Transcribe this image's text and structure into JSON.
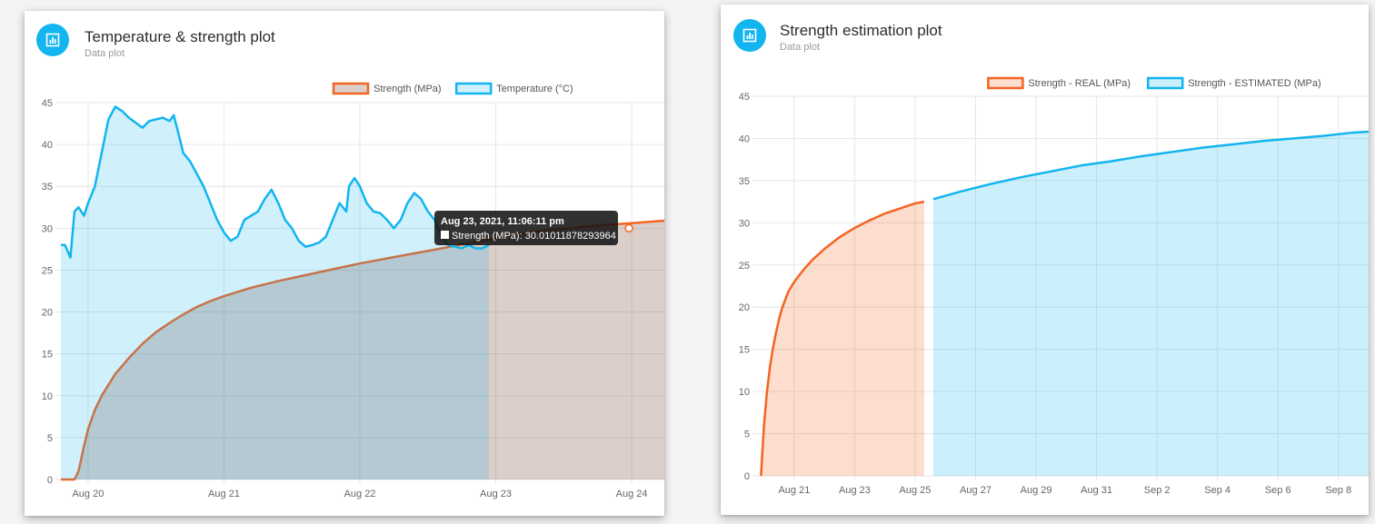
{
  "cards": [
    {
      "title": "Temperature & strength plot",
      "subtitle": "Data plot",
      "icon": "bar-chart-icon",
      "accent": "#12b5ef"
    },
    {
      "title": "Strength estimation plot",
      "subtitle": "Data plot",
      "icon": "bar-chart-icon",
      "accent": "#12b5ef"
    }
  ],
  "tooltip": {
    "title": "Aug 23, 2021, 11:06:11 pm",
    "body": "Strength (MPa): 30.01011878293964"
  },
  "chart_data": [
    {
      "type": "area",
      "legend_position": "top-right",
      "grid": true,
      "x_unit": "days",
      "x_tick_labels": [
        "Aug 20",
        "Aug 21",
        "Aug 22",
        "Aug 23",
        "Aug 24"
      ],
      "x_tick_values": [
        1,
        2,
        3,
        4,
        5
      ],
      "xlim": [
        0.8,
        5.24
      ],
      "ylim": [
        0,
        45
      ],
      "y_ticks": [
        0,
        5,
        10,
        15,
        20,
        25,
        30,
        35,
        40,
        45
      ],
      "series": [
        {
          "name": "Strength (MPa)",
          "color": "#f26522",
          "fill": "rgba(140,95,80,0.30)",
          "points": [
            [
              0.8,
              0
            ],
            [
              0.9,
              0
            ],
            [
              0.93,
              1
            ],
            [
              0.97,
              4
            ],
            [
              1.0,
              6
            ],
            [
              1.05,
              8.3
            ],
            [
              1.1,
              10
            ],
            [
              1.2,
              12.6
            ],
            [
              1.3,
              14.5
            ],
            [
              1.4,
              16.2
            ],
            [
              1.5,
              17.6
            ],
            [
              1.6,
              18.7
            ],
            [
              1.7,
              19.7
            ],
            [
              1.8,
              20.6
            ],
            [
              1.9,
              21.3
            ],
            [
              2.0,
              21.9
            ],
            [
              2.2,
              22.9
            ],
            [
              2.4,
              23.7
            ],
            [
              2.6,
              24.4
            ],
            [
              2.8,
              25.1
            ],
            [
              3.0,
              25.8
            ],
            [
              3.2,
              26.4
            ],
            [
              3.4,
              27
            ],
            [
              3.6,
              27.6
            ],
            [
              3.8,
              28.2
            ],
            [
              4.0,
              28.8
            ],
            [
              4.2,
              29.4
            ],
            [
              4.4,
              29.8
            ],
            [
              4.6,
              30.1
            ],
            [
              4.8,
              30.4
            ],
            [
              5.0,
              30.6
            ],
            [
              5.24,
              30.9
            ]
          ]
        },
        {
          "name": "Temperature (°C)",
          "color": "#12b5ef",
          "fill": "rgba(18,181,239,0.20)",
          "points": [
            [
              0.8,
              28
            ],
            [
              0.83,
              28
            ],
            [
              0.87,
              26.5
            ],
            [
              0.9,
              32
            ],
            [
              0.93,
              32.5
            ],
            [
              0.97,
              31.5
            ],
            [
              1.0,
              33
            ],
            [
              1.05,
              35
            ],
            [
              1.1,
              39
            ],
            [
              1.15,
              43
            ],
            [
              1.2,
              44.5
            ],
            [
              1.25,
              44
            ],
            [
              1.3,
              43.2
            ],
            [
              1.35,
              42.6
            ],
            [
              1.4,
              42
            ],
            [
              1.45,
              42.8
            ],
            [
              1.5,
              43
            ],
            [
              1.55,
              43.2
            ],
            [
              1.6,
              42.8
            ],
            [
              1.63,
              43.5
            ],
            [
              1.67,
              41
            ],
            [
              1.7,
              39
            ],
            [
              1.75,
              38
            ],
            [
              1.8,
              36.5
            ],
            [
              1.85,
              35
            ],
            [
              1.9,
              33
            ],
            [
              1.95,
              31
            ],
            [
              2.0,
              29.5
            ],
            [
              2.05,
              28.5
            ],
            [
              2.1,
              29
            ],
            [
              2.15,
              31
            ],
            [
              2.2,
              31.5
            ],
            [
              2.25,
              32
            ],
            [
              2.3,
              33.5
            ],
            [
              2.35,
              34.6
            ],
            [
              2.4,
              33
            ],
            [
              2.45,
              31
            ],
            [
              2.5,
              30
            ],
            [
              2.55,
              28.5
            ],
            [
              2.6,
              27.8
            ],
            [
              2.65,
              28
            ],
            [
              2.7,
              28.3
            ],
            [
              2.75,
              29
            ],
            [
              2.8,
              31
            ],
            [
              2.85,
              33
            ],
            [
              2.9,
              32
            ],
            [
              2.92,
              35
            ],
            [
              2.96,
              36
            ],
            [
              3.0,
              35
            ],
            [
              3.05,
              33
            ],
            [
              3.1,
              32
            ],
            [
              3.15,
              31.8
            ],
            [
              3.2,
              31
            ],
            [
              3.25,
              30
            ],
            [
              3.3,
              31
            ],
            [
              3.35,
              33
            ],
            [
              3.4,
              34.2
            ],
            [
              3.45,
              33.5
            ],
            [
              3.5,
              32
            ],
            [
              3.55,
              31
            ],
            [
              3.6,
              29
            ],
            [
              3.65,
              28
            ],
            [
              3.7,
              27.8
            ],
            [
              3.75,
              27.6
            ],
            [
              3.8,
              28
            ],
            [
              3.85,
              27.6
            ],
            [
              3.9,
              27.6
            ],
            [
              3.95,
              28
            ]
          ]
        }
      ]
    },
    {
      "type": "area",
      "legend_position": "top-right",
      "grid": true,
      "x_unit": "days",
      "x_tick_labels": [
        "Aug 21",
        "Aug 23",
        "Aug 25",
        "Aug 27",
        "Aug 29",
        "Aug 31",
        "Sep 2",
        "Sep 4",
        "Sep 6",
        "Sep 8"
      ],
      "x_tick_values": [
        21,
        23,
        25,
        27,
        29,
        31,
        33,
        35,
        37,
        39
      ],
      "xlim": [
        19.8,
        40.0
      ],
      "ylim": [
        0,
        45
      ],
      "y_ticks": [
        0,
        5,
        10,
        15,
        20,
        25,
        30,
        35,
        40,
        45
      ],
      "series": [
        {
          "name": "Strength - REAL (MPa)",
          "color": "#f26522",
          "fill": "rgba(242,101,34,0.22)",
          "points": [
            [
              19.9,
              0
            ],
            [
              20.0,
              6
            ],
            [
              20.1,
              10
            ],
            [
              20.2,
              13
            ],
            [
              20.3,
              15.2
            ],
            [
              20.4,
              17
            ],
            [
              20.5,
              18.6
            ],
            [
              20.6,
              19.9
            ],
            [
              20.8,
              21.8
            ],
            [
              21.0,
              23
            ],
            [
              21.3,
              24.4
            ],
            [
              21.6,
              25.6
            ],
            [
              22.0,
              26.9
            ],
            [
              22.5,
              28.3
            ],
            [
              23.0,
              29.4
            ],
            [
              23.5,
              30.3
            ],
            [
              24.0,
              31.1
            ],
            [
              24.5,
              31.7
            ],
            [
              25.0,
              32.3
            ],
            [
              25.3,
              32.5
            ]
          ]
        },
        {
          "name": "Strength - ESTIMATED (MPa)",
          "color": "#12b5ef",
          "fill": "rgba(18,181,239,0.22)",
          "points": [
            [
              25.6,
              32.8
            ],
            [
              26.5,
              33.7
            ],
            [
              27.5,
              34.6
            ],
            [
              28.5,
              35.4
            ],
            [
              29.5,
              36.1
            ],
            [
              30.5,
              36.8
            ],
            [
              31.5,
              37.3
            ],
            [
              32.5,
              37.9
            ],
            [
              33.5,
              38.4
            ],
            [
              34.5,
              38.9
            ],
            [
              35.5,
              39.3
            ],
            [
              36.5,
              39.7
            ],
            [
              37.5,
              40.0
            ],
            [
              38.5,
              40.3
            ],
            [
              39.5,
              40.7
            ],
            [
              40.0,
              40.8
            ]
          ]
        }
      ]
    }
  ]
}
